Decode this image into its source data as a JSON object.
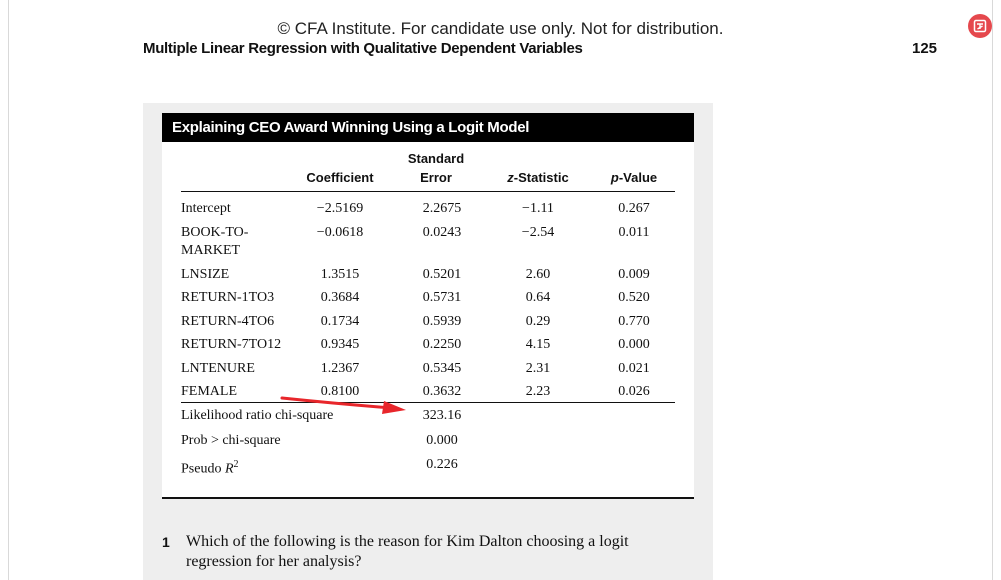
{
  "header": {
    "copyright": "© CFA Institute. For candidate use only. Not for distribution.",
    "running_head": "Multiple Linear Regression with Qualitative Dependent Variables",
    "page_number": "125"
  },
  "table": {
    "title": "Explaining CEO Award Winning Using a Logit Model",
    "headers": {
      "coefficient": "Coefficient",
      "std_error_1": "Standard",
      "std_error_2": "Error",
      "z_stat_italic": "z",
      "z_stat_rest": "-Statistic",
      "p_value_italic": "p",
      "p_value_rest": "-Value"
    },
    "rows": [
      {
        "label": "Intercept",
        "coef": "−2.5169",
        "se": "2.2675",
        "z": "−1.11",
        "p": "0.267"
      },
      {
        "label_1": "BOOK-TO-",
        "label_2": "MARKET",
        "coef": "−0.0618",
        "se": "0.0243",
        "z": "−2.54",
        "p": "0.011"
      },
      {
        "label": "LNSIZE",
        "coef": "1.3515",
        "se": "0.5201",
        "z": "2.60",
        "p": "0.009"
      },
      {
        "label": "RETURN-1TO3",
        "coef": "0.3684",
        "se": "0.5731",
        "z": "0.64",
        "p": "0.520"
      },
      {
        "label": "RETURN-4TO6",
        "coef": "0.1734",
        "se": "0.5939",
        "z": "0.29",
        "p": "0.770"
      },
      {
        "label": "RETURN-7TO12",
        "coef": "0.9345",
        "se": "0.2250",
        "z": "4.15",
        "p": "0.000"
      },
      {
        "label": "LNTENURE",
        "coef": "1.2367",
        "se": "0.5345",
        "z": "2.31",
        "p": "0.021"
      },
      {
        "label": "FEMALE",
        "coef": "0.8100",
        "se": "0.3632",
        "z": "2.23",
        "p": "0.026"
      }
    ],
    "stats": [
      {
        "label": "Likelihood ratio chi-square",
        "value": "323.16"
      },
      {
        "label": "Prob > chi-square",
        "value": "0.000"
      },
      {
        "label_base": "Pseudo ",
        "label_var": "R",
        "label_sup": "2",
        "value": "0.226"
      }
    ]
  },
  "question": {
    "number": "1",
    "text": "Which of the following is the reason for Kim Dalton choosing a logit regression for her analysis?"
  },
  "colors": {
    "arrow": "#e8262b",
    "badge": "#e5484d",
    "panel": "#eeeeee"
  },
  "icons": {
    "badge": "translate-badge-icon",
    "annotation": "red-arrow-icon"
  }
}
